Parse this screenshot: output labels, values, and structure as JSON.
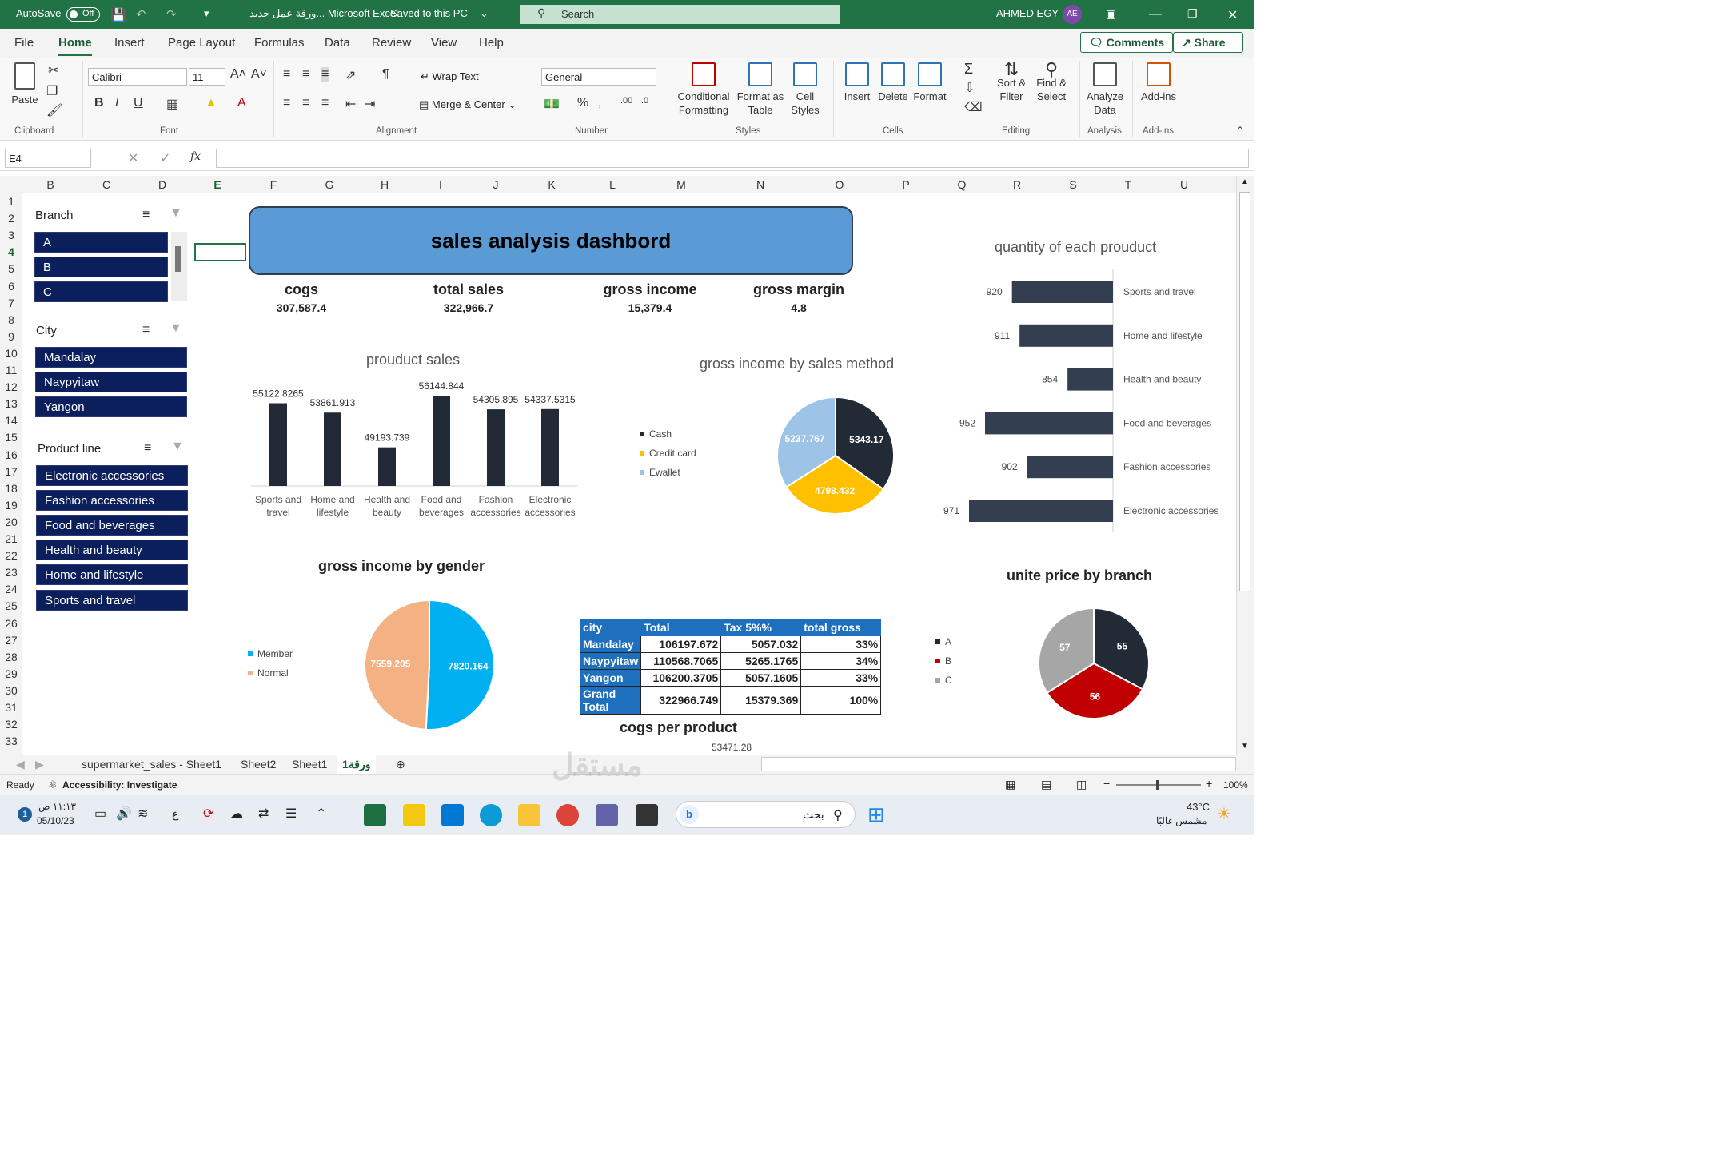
{
  "title_bar": {
    "autosave": "AutoSave",
    "autosave_state": "Off",
    "doc_title": "ورقة عمل جديد... Microsoft Excel",
    "saved": "Saved to this PC",
    "search_placeholder": "Search",
    "user": "AHMED EGY",
    "avatar": "AE"
  },
  "ribbon_tabs": [
    "File",
    "Home",
    "Insert",
    "Page Layout",
    "Formulas",
    "Data",
    "Review",
    "View",
    "Help"
  ],
  "active_tab": "Home",
  "comments_label": "Comments",
  "share_label": "Share",
  "ribbon": {
    "paste": "Paste",
    "clipboard": "Clipboard",
    "font_name": "Calibri",
    "font_size": "11",
    "font_group": "Font",
    "wrap_text": "Wrap Text",
    "merge_center": "Merge & Center",
    "alignment": "Alignment",
    "number_format": "General",
    "number": "Number",
    "conditional_formatting_1": "Conditional",
    "conditional_formatting_2": "Formatting",
    "format_as_table_1": "Format as",
    "format_as_table_2": "Table",
    "cell_styles_1": "Cell",
    "cell_styles_2": "Styles",
    "styles": "Styles",
    "insert": "Insert",
    "delete": "Delete",
    "format": "Format",
    "cells": "Cells",
    "sort_filter_1": "Sort &",
    "sort_filter_2": "Filter",
    "find_select_1": "Find &",
    "find_select_2": "Select",
    "editing": "Editing",
    "analyze_data_1": "Analyze",
    "analyze_data_2": "Data",
    "analysis": "Analysis",
    "addins": "Add-ins",
    "addins_group": "Add-ins",
    "bold": "B",
    "italic": "I",
    "underline": "U"
  },
  "name_box": "E4",
  "fx": "fx",
  "columns": [
    "B",
    "C",
    "D",
    "E",
    "F",
    "G",
    "H",
    "I",
    "J",
    "K",
    "L",
    "M",
    "N",
    "O",
    "P",
    "Q",
    "R",
    "S",
    "T",
    "U"
  ],
  "rows": [
    "1",
    "2",
    "3",
    "4",
    "5",
    "6",
    "7",
    "8",
    "9",
    "10",
    "11",
    "12",
    "13",
    "14",
    "15",
    "16",
    "17",
    "18",
    "19",
    "20",
    "21",
    "22",
    "23",
    "24",
    "25",
    "26",
    "27",
    "28",
    "29",
    "30",
    "31",
    "32",
    "33"
  ],
  "slicers": {
    "branch": {
      "title": "Branch",
      "items": [
        "A",
        "B",
        "C"
      ]
    },
    "city": {
      "title": "City",
      "items": [
        "Mandalay",
        "Naypyitaw",
        "Yangon"
      ]
    },
    "product_line": {
      "title": "Product line",
      "items": [
        "Electronic accessories",
        "Fashion accessories",
        "Food and beverages",
        "Health and beauty",
        "Home and lifestyle",
        "Sports and travel"
      ]
    }
  },
  "dashboard_title": "sales analysis dashbord",
  "kpis": [
    {
      "label": "cogs",
      "value": "307,587.4"
    },
    {
      "label": "total sales",
      "value": "322,966.7"
    },
    {
      "label": "gross income",
      "value": "15,379.4"
    },
    {
      "label": "gross margin",
      "value": "4.8"
    }
  ],
  "chart_data": [
    {
      "type": "bar",
      "title": "prouduct sales",
      "categories": [
        "Sports and travel",
        "Home and lifestyle",
        "Health and beauty",
        "Food and beverages",
        "Fashion accessories",
        "Electronic accessories"
      ],
      "values": [
        55122.8265,
        53861.913,
        49193.739,
        56144.844,
        54305.895,
        54337.5315
      ],
      "value_labels": [
        "55122.8265",
        "53861.913",
        "49193.739",
        "56144.844",
        "54305.895",
        "54337.5315"
      ],
      "color": "#222a35"
    },
    {
      "type": "pie",
      "title": "gross income by sales method",
      "labels": [
        "Cash",
        "Credit card",
        "Ewallet"
      ],
      "values": [
        5343.17,
        4798.432,
        5237.767
      ],
      "value_labels": [
        "5343.17",
        "4798.432",
        "5237.767"
      ],
      "colors": [
        "#222a35",
        "#ffc000",
        "#9dc3e6"
      ],
      "legend": "left"
    },
    {
      "type": "bar",
      "orientation": "horizontal",
      "title": "quantity of each prouduct",
      "categories": [
        "Sports and travel",
        "Home and lifestyle",
        "Health and beauty",
        "Food and beverages",
        "Fashion accessories",
        "Electronic accessories"
      ],
      "values": [
        920,
        911,
        854,
        952,
        902,
        971
      ],
      "value_labels": [
        "920",
        "911",
        "854",
        "952",
        "902",
        "971"
      ],
      "color": "#333f50"
    },
    {
      "type": "pie",
      "title": "gross income by gender",
      "labels": [
        "Member",
        "Normal"
      ],
      "values": [
        7820.164,
        7559.205
      ],
      "value_labels": [
        "7820.164",
        "7559.205"
      ],
      "colors": [
        "#00b0f0",
        "#f4b183"
      ],
      "legend": "left"
    },
    {
      "type": "table",
      "headers": [
        "city",
        "Total",
        "Tax 5%%",
        "total gross"
      ],
      "rows": [
        [
          "Mandalay",
          "106197.672",
          "5057.032",
          "33%"
        ],
        [
          "Naypyitaw",
          "110568.7065",
          "5265.1765",
          "34%"
        ],
        [
          "Yangon",
          "106200.3705",
          "5057.1605",
          "33%"
        ],
        [
          "Grand Total",
          "322966.749",
          "15379.369",
          "100%"
        ]
      ]
    },
    {
      "type": "pie",
      "title": "unite price by branch",
      "labels": [
        "A",
        "B",
        "C"
      ],
      "values": [
        55,
        56,
        57
      ],
      "value_labels": [
        "55",
        "56",
        "57"
      ],
      "colors": [
        "#222a35",
        "#c00000",
        "#a6a6a6"
      ],
      "legend": "left"
    }
  ],
  "cogs_title": "cogs per product",
  "cogs_value": "53471.28",
  "sheets": [
    "supermarket_sales - Sheet1",
    "Sheet2",
    "Sheet1",
    "ورقة1"
  ],
  "active_sheet": "ورقة1",
  "status": {
    "ready": "Ready",
    "accessibility": "Accessibility: Investigate",
    "zoom": "100%"
  },
  "taskbar": {
    "time": "١١:١٣ ص",
    "date": "05/10/23",
    "search": "بحث",
    "temp": "43°C",
    "weather": "مشمس غالبًا",
    "lang": "ع"
  },
  "watermark": "مستقل mostaql.com"
}
